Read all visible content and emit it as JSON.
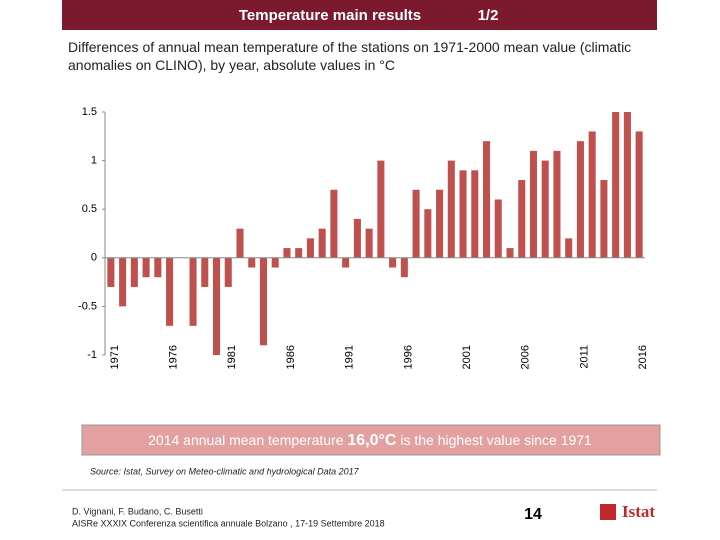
{
  "header": {
    "title": "Temperature main results",
    "page": "1/2"
  },
  "chart_data": {
    "type": "bar",
    "subtitle": "Differences of annual mean temperature of the stations on 1971-2000 mean value (climatic anomalies on CLINO), by year, absolute values in °C",
    "categories": [
      "1971",
      null,
      null,
      null,
      null,
      "1976",
      null,
      null,
      null,
      null,
      "1981",
      null,
      null,
      null,
      null,
      "1986",
      null,
      null,
      null,
      null,
      "1991",
      null,
      null,
      null,
      null,
      "1996",
      null,
      null,
      null,
      null,
      "2001",
      null,
      null,
      null,
      null,
      "2006",
      null,
      null,
      null,
      null,
      "2011",
      null,
      null,
      null,
      null,
      "2016"
    ],
    "values": [
      -0.3,
      -0.5,
      -0.3,
      -0.2,
      -0.2,
      -0.7,
      0,
      -0.7,
      -0.3,
      -1.0,
      -0.3,
      0.3,
      -0.1,
      -0.9,
      -0.1,
      0.1,
      0.1,
      0.2,
      0.3,
      0.7,
      -0.1,
      0.4,
      0.3,
      1.0,
      -0.1,
      -0.2,
      0.7,
      0.5,
      0.7,
      1.0,
      0.9,
      0.9,
      1.2,
      0.6,
      0.1,
      0.8,
      1.1,
      1.0,
      1.1,
      0.2,
      1.2,
      1.3,
      0.8,
      1.5,
      1.5,
      1.3
    ],
    "color": "#c0504d",
    "ylim": [
      -1,
      1.5
    ],
    "yticks": [
      1.5,
      1,
      0.5,
      0,
      -0.5,
      -1
    ],
    "grid": false
  },
  "banner": {
    "before": "2014 annual mean temperature ",
    "highlight": "16,0°C",
    "after": " is the highest value since 1971"
  },
  "source": "Source: Istat, Survey on Meteo-climatic and hydrological Data 2017",
  "footer": {
    "authors": "D. Vignani, F. Budano, C. Busetti",
    "conference": "AISRe XXXIX Conferenza scientifica annuale Bolzano , 17-19 Settembre 2018"
  },
  "page_number": "14",
  "logo": "Istat"
}
